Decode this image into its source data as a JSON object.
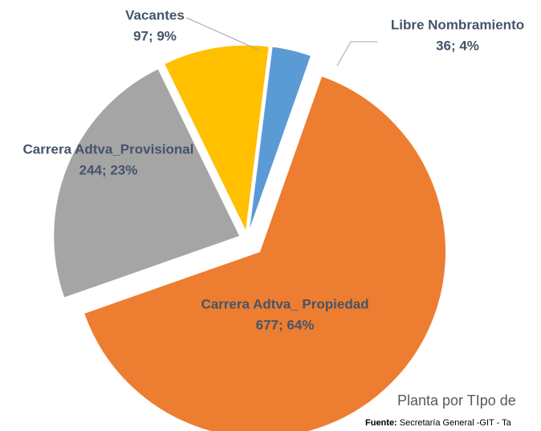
{
  "chart_data": {
    "type": "pie",
    "title": "Planta por TIpo de",
    "source_label": "Fuente:",
    "source": "Secretaría General -GIT - Ta",
    "categories": [
      "Carrera Adtva_ Propiedad",
      "Carrera Adtva_Provisional",
      "Vacantes",
      "Libre Nombramiento"
    ],
    "values": [
      677,
      244,
      97,
      36
    ],
    "value_labels": [
      "677; 64%",
      "244; 23%",
      "97; 9%",
      "36; 4%"
    ],
    "colors": [
      "#ed7d31",
      "#a5a5a5",
      "#ffc000",
      "#5b9bd5"
    ]
  }
}
